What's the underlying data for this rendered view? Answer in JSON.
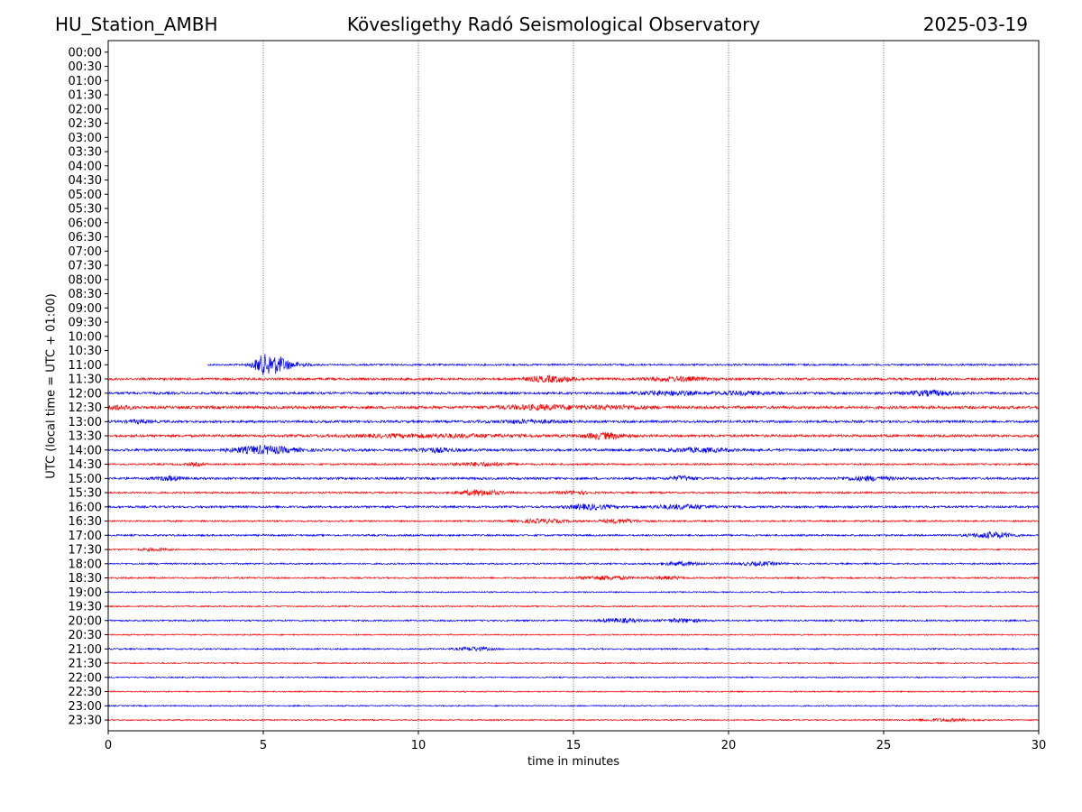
{
  "header": {
    "station": "HU_Station_AMBH",
    "observatory": "Kövesligethy Radó Seismological Observatory",
    "date": "2025-03-19"
  },
  "chart_data": {
    "type": "line",
    "title": "Kövesligethy Radó Seismological Observatory",
    "xlabel": "time in minutes",
    "ylabel": "UTC (local time = UTC + 01:00)",
    "xlim": [
      0,
      30
    ],
    "xticks": [
      0,
      5,
      10,
      15,
      20,
      25,
      30
    ],
    "vertical_gridlines_at": [
      5,
      10,
      15,
      20,
      25
    ],
    "rows": [
      "00:00",
      "00:30",
      "01:00",
      "01:30",
      "02:00",
      "02:30",
      "03:00",
      "03:30",
      "04:00",
      "04:30",
      "05:00",
      "05:30",
      "06:00",
      "06:30",
      "07:00",
      "07:30",
      "08:00",
      "08:30",
      "09:00",
      "09:30",
      "10:00",
      "10:30",
      "11:00",
      "11:30",
      "12:00",
      "12:30",
      "13:00",
      "13:30",
      "14:00",
      "14:30",
      "15:00",
      "15:30",
      "16:00",
      "16:30",
      "17:00",
      "17:30",
      "18:00",
      "18:30",
      "19:00",
      "19:30",
      "20:00",
      "20:30",
      "21:00",
      "21:30",
      "22:00",
      "22:30",
      "23:00",
      "23:30"
    ],
    "colors": {
      "hour_trace": "#0000ff",
      "half_hour_trace": "#ff0000",
      "axes": "#000000"
    },
    "first_trace_row": "11:00",
    "first_trace_start_minute": 3.2,
    "traces": [
      {
        "row": "11:00",
        "color": "#0000ff",
        "noise": 1.0,
        "bursts": [
          [
            5.0,
            0.5,
            9
          ],
          [
            5.5,
            0.6,
            8
          ],
          [
            6.2,
            0.4,
            1.5
          ]
        ]
      },
      {
        "row": "11:30",
        "color": "#ff0000",
        "noise": 1.3,
        "bursts": [
          [
            14.3,
            1.2,
            3
          ],
          [
            18.3,
            1.5,
            2
          ]
        ]
      },
      {
        "row": "12:00",
        "color": "#0000ff",
        "noise": 1.3,
        "bursts": [
          [
            18.0,
            1.5,
            2
          ],
          [
            20.5,
            1.5,
            1.5
          ],
          [
            26.5,
            1.2,
            2.5
          ]
        ]
      },
      {
        "row": "12:30",
        "color": "#ff0000",
        "noise": 1.6,
        "bursts": [
          [
            14.0,
            2.0,
            2
          ],
          [
            16.5,
            1.5,
            1.5
          ],
          [
            0.3,
            0.6,
            2
          ]
        ]
      },
      {
        "row": "13:00",
        "color": "#0000ff",
        "noise": 1.3,
        "bursts": [
          [
            13.5,
            1.5,
            1.5
          ],
          [
            1.0,
            0.6,
            1.5
          ]
        ]
      },
      {
        "row": "13:30",
        "color": "#ff0000",
        "noise": 1.4,
        "bursts": [
          [
            16.0,
            1.0,
            3
          ],
          [
            10.5,
            4.0,
            1.5
          ]
        ]
      },
      {
        "row": "14:00",
        "color": "#0000ff",
        "noise": 1.4,
        "bursts": [
          [
            5.0,
            1.5,
            4
          ],
          [
            10.5,
            1.0,
            2
          ],
          [
            19.0,
            1.5,
            1.8
          ]
        ]
      },
      {
        "row": "14:30",
        "color": "#ff0000",
        "noise": 1.0,
        "bursts": [
          [
            12.0,
            1.5,
            1.8
          ],
          [
            2.8,
            0.4,
            1.5
          ]
        ]
      },
      {
        "row": "15:00",
        "color": "#0000ff",
        "noise": 1.3,
        "bursts": [
          [
            2.0,
            0.6,
            2
          ],
          [
            18.5,
            0.6,
            2
          ],
          [
            24.5,
            1.2,
            2
          ]
        ]
      },
      {
        "row": "15:30",
        "color": "#ff0000",
        "noise": 1.0,
        "bursts": [
          [
            12.0,
            1.0,
            3
          ],
          [
            15.0,
            0.8,
            1.5
          ]
        ]
      },
      {
        "row": "16:00",
        "color": "#0000ff",
        "noise": 1.2,
        "bursts": [
          [
            15.5,
            1.0,
            2.5
          ],
          [
            18.5,
            1.5,
            2
          ]
        ]
      },
      {
        "row": "16:30",
        "color": "#ff0000",
        "noise": 0.9,
        "bursts": [
          [
            14.0,
            1.2,
            2
          ],
          [
            16.5,
            1.0,
            2
          ]
        ]
      },
      {
        "row": "17:00",
        "color": "#0000ff",
        "noise": 1.0,
        "bursts": [
          [
            28.5,
            1.0,
            3
          ]
        ]
      },
      {
        "row": "17:30",
        "color": "#ff0000",
        "noise": 0.8,
        "bursts": [
          [
            1.5,
            0.8,
            1.2
          ]
        ]
      },
      {
        "row": "18:00",
        "color": "#0000ff",
        "noise": 0.9,
        "bursts": [
          [
            18.5,
            1.0,
            1.8
          ],
          [
            21.0,
            1.0,
            1.8
          ]
        ]
      },
      {
        "row": "18:30",
        "color": "#ff0000",
        "noise": 0.9,
        "bursts": [
          [
            16.0,
            1.2,
            2
          ],
          [
            18.0,
            0.8,
            1.5
          ]
        ]
      },
      {
        "row": "19:00",
        "color": "#0000ff",
        "noise": 0.7,
        "bursts": []
      },
      {
        "row": "19:30",
        "color": "#ff0000",
        "noise": 0.7,
        "bursts": []
      },
      {
        "row": "20:00",
        "color": "#0000ff",
        "noise": 0.9,
        "bursts": [
          [
            16.5,
            1.0,
            2
          ],
          [
            18.5,
            1.0,
            1.8
          ]
        ]
      },
      {
        "row": "20:30",
        "color": "#ff0000",
        "noise": 0.7,
        "bursts": []
      },
      {
        "row": "21:00",
        "color": "#0000ff",
        "noise": 0.8,
        "bursts": [
          [
            11.8,
            0.8,
            2
          ]
        ]
      },
      {
        "row": "21:30",
        "color": "#ff0000",
        "noise": 0.7,
        "bursts": []
      },
      {
        "row": "22:00",
        "color": "#0000ff",
        "noise": 0.7,
        "bursts": []
      },
      {
        "row": "22:30",
        "color": "#ff0000",
        "noise": 0.7,
        "bursts": []
      },
      {
        "row": "23:00",
        "color": "#0000ff",
        "noise": 0.7,
        "bursts": []
      },
      {
        "row": "23:30",
        "color": "#ff0000",
        "noise": 0.7,
        "bursts": [
          [
            27.0,
            1.5,
            1.3
          ]
        ]
      }
    ]
  }
}
